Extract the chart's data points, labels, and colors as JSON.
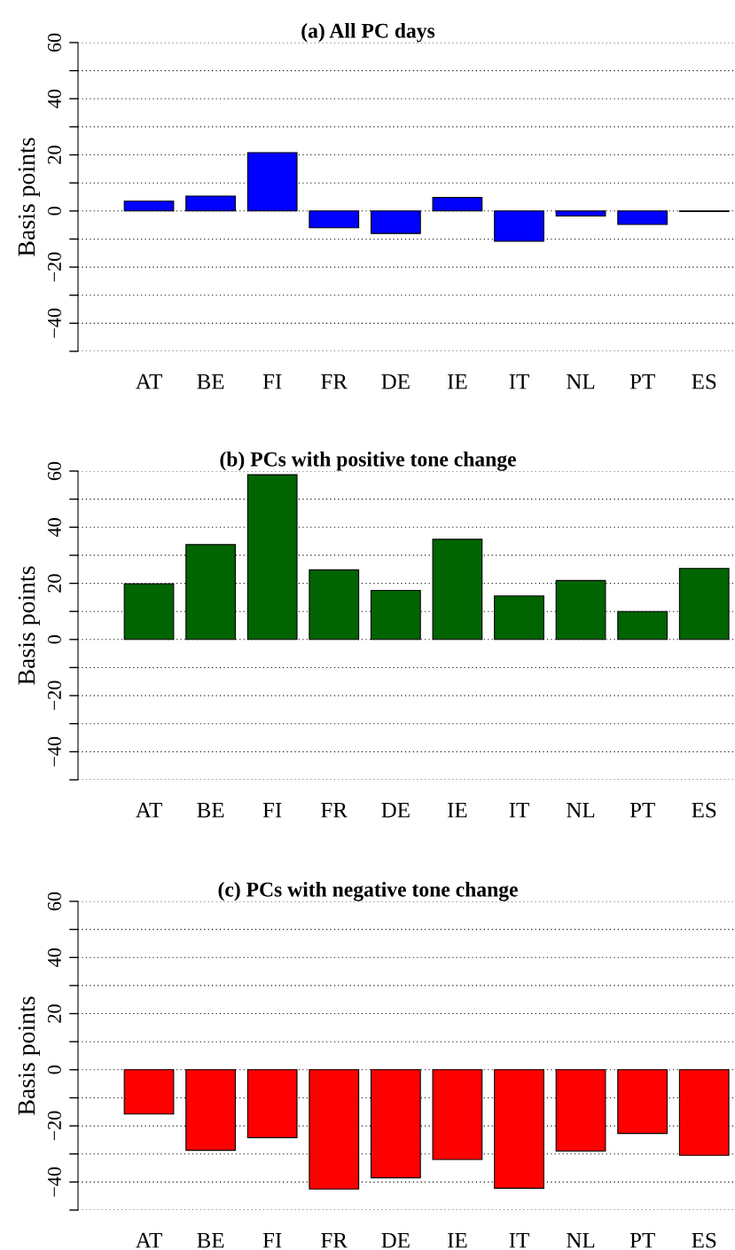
{
  "chart_data": [
    {
      "type": "bar",
      "title": "(a) All PC days",
      "ylabel": "Basis points",
      "categories": [
        "AT",
        "BE",
        "FI",
        "FR",
        "DE",
        "IE",
        "IT",
        "NL",
        "PT",
        "ES"
      ],
      "values": [
        3.5,
        5.3,
        20.8,
        -6,
        -8,
        4.8,
        -10.8,
        -1.8,
        -4.8,
        -0.2
      ],
      "color": "#0000ff",
      "ylim": [
        -50,
        60
      ],
      "yticks": [
        {
          "value": -50,
          "label": null
        },
        {
          "value": -40,
          "label": "−40"
        },
        {
          "value": -30,
          "label": null
        },
        {
          "value": -20,
          "label": "−20"
        },
        {
          "value": -10,
          "label": null
        },
        0,
        {
          "value": 10,
          "label": null
        },
        20,
        {
          "value": 30,
          "label": null
        },
        40,
        {
          "value": 50,
          "label": null
        },
        60
      ],
      "grid": "y"
    },
    {
      "type": "bar",
      "title": "(b) PCs with positive tone change",
      "ylabel": "Basis points",
      "categories": [
        "AT",
        "BE",
        "FI",
        "FR",
        "DE",
        "IE",
        "IT",
        "NL",
        "PT",
        "ES"
      ],
      "values": [
        19.8,
        33.8,
        58.7,
        24.8,
        17.5,
        35.7,
        15.5,
        21,
        10,
        25.3
      ],
      "color": "#006400",
      "ylim": [
        -50,
        60
      ],
      "yticks": [
        {
          "value": -50,
          "label": null
        },
        {
          "value": -40,
          "label": "−40"
        },
        {
          "value": -30,
          "label": null
        },
        {
          "value": -20,
          "label": "−20"
        },
        {
          "value": -10,
          "label": null
        },
        0,
        {
          "value": 10,
          "label": null
        },
        20,
        {
          "value": 30,
          "label": null
        },
        40,
        {
          "value": 50,
          "label": null
        },
        60
      ],
      "grid": "y"
    },
    {
      "type": "bar",
      "title": "(c) PCs with negative tone change",
      "ylabel": "Basis points",
      "categories": [
        "AT",
        "BE",
        "FI",
        "FR",
        "DE",
        "IE",
        "IT",
        "NL",
        "PT",
        "ES"
      ],
      "values": [
        -15.8,
        -28.7,
        -24.2,
        -42.5,
        -38.5,
        -32,
        -42.2,
        -29,
        -22.7,
        -30.5
      ],
      "color": "#ff0000",
      "ylim": [
        -50,
        60
      ],
      "yticks": [
        {
          "value": -50,
          "label": null
        },
        {
          "value": -40,
          "label": "−40"
        },
        {
          "value": -30,
          "label": null
        },
        {
          "value": -20,
          "label": "−20"
        },
        {
          "value": -10,
          "label": null
        },
        0,
        {
          "value": 10,
          "label": null
        },
        20,
        {
          "value": 30,
          "label": null
        },
        40,
        {
          "value": 50,
          "label": null
        },
        60
      ],
      "grid": "y"
    }
  ]
}
